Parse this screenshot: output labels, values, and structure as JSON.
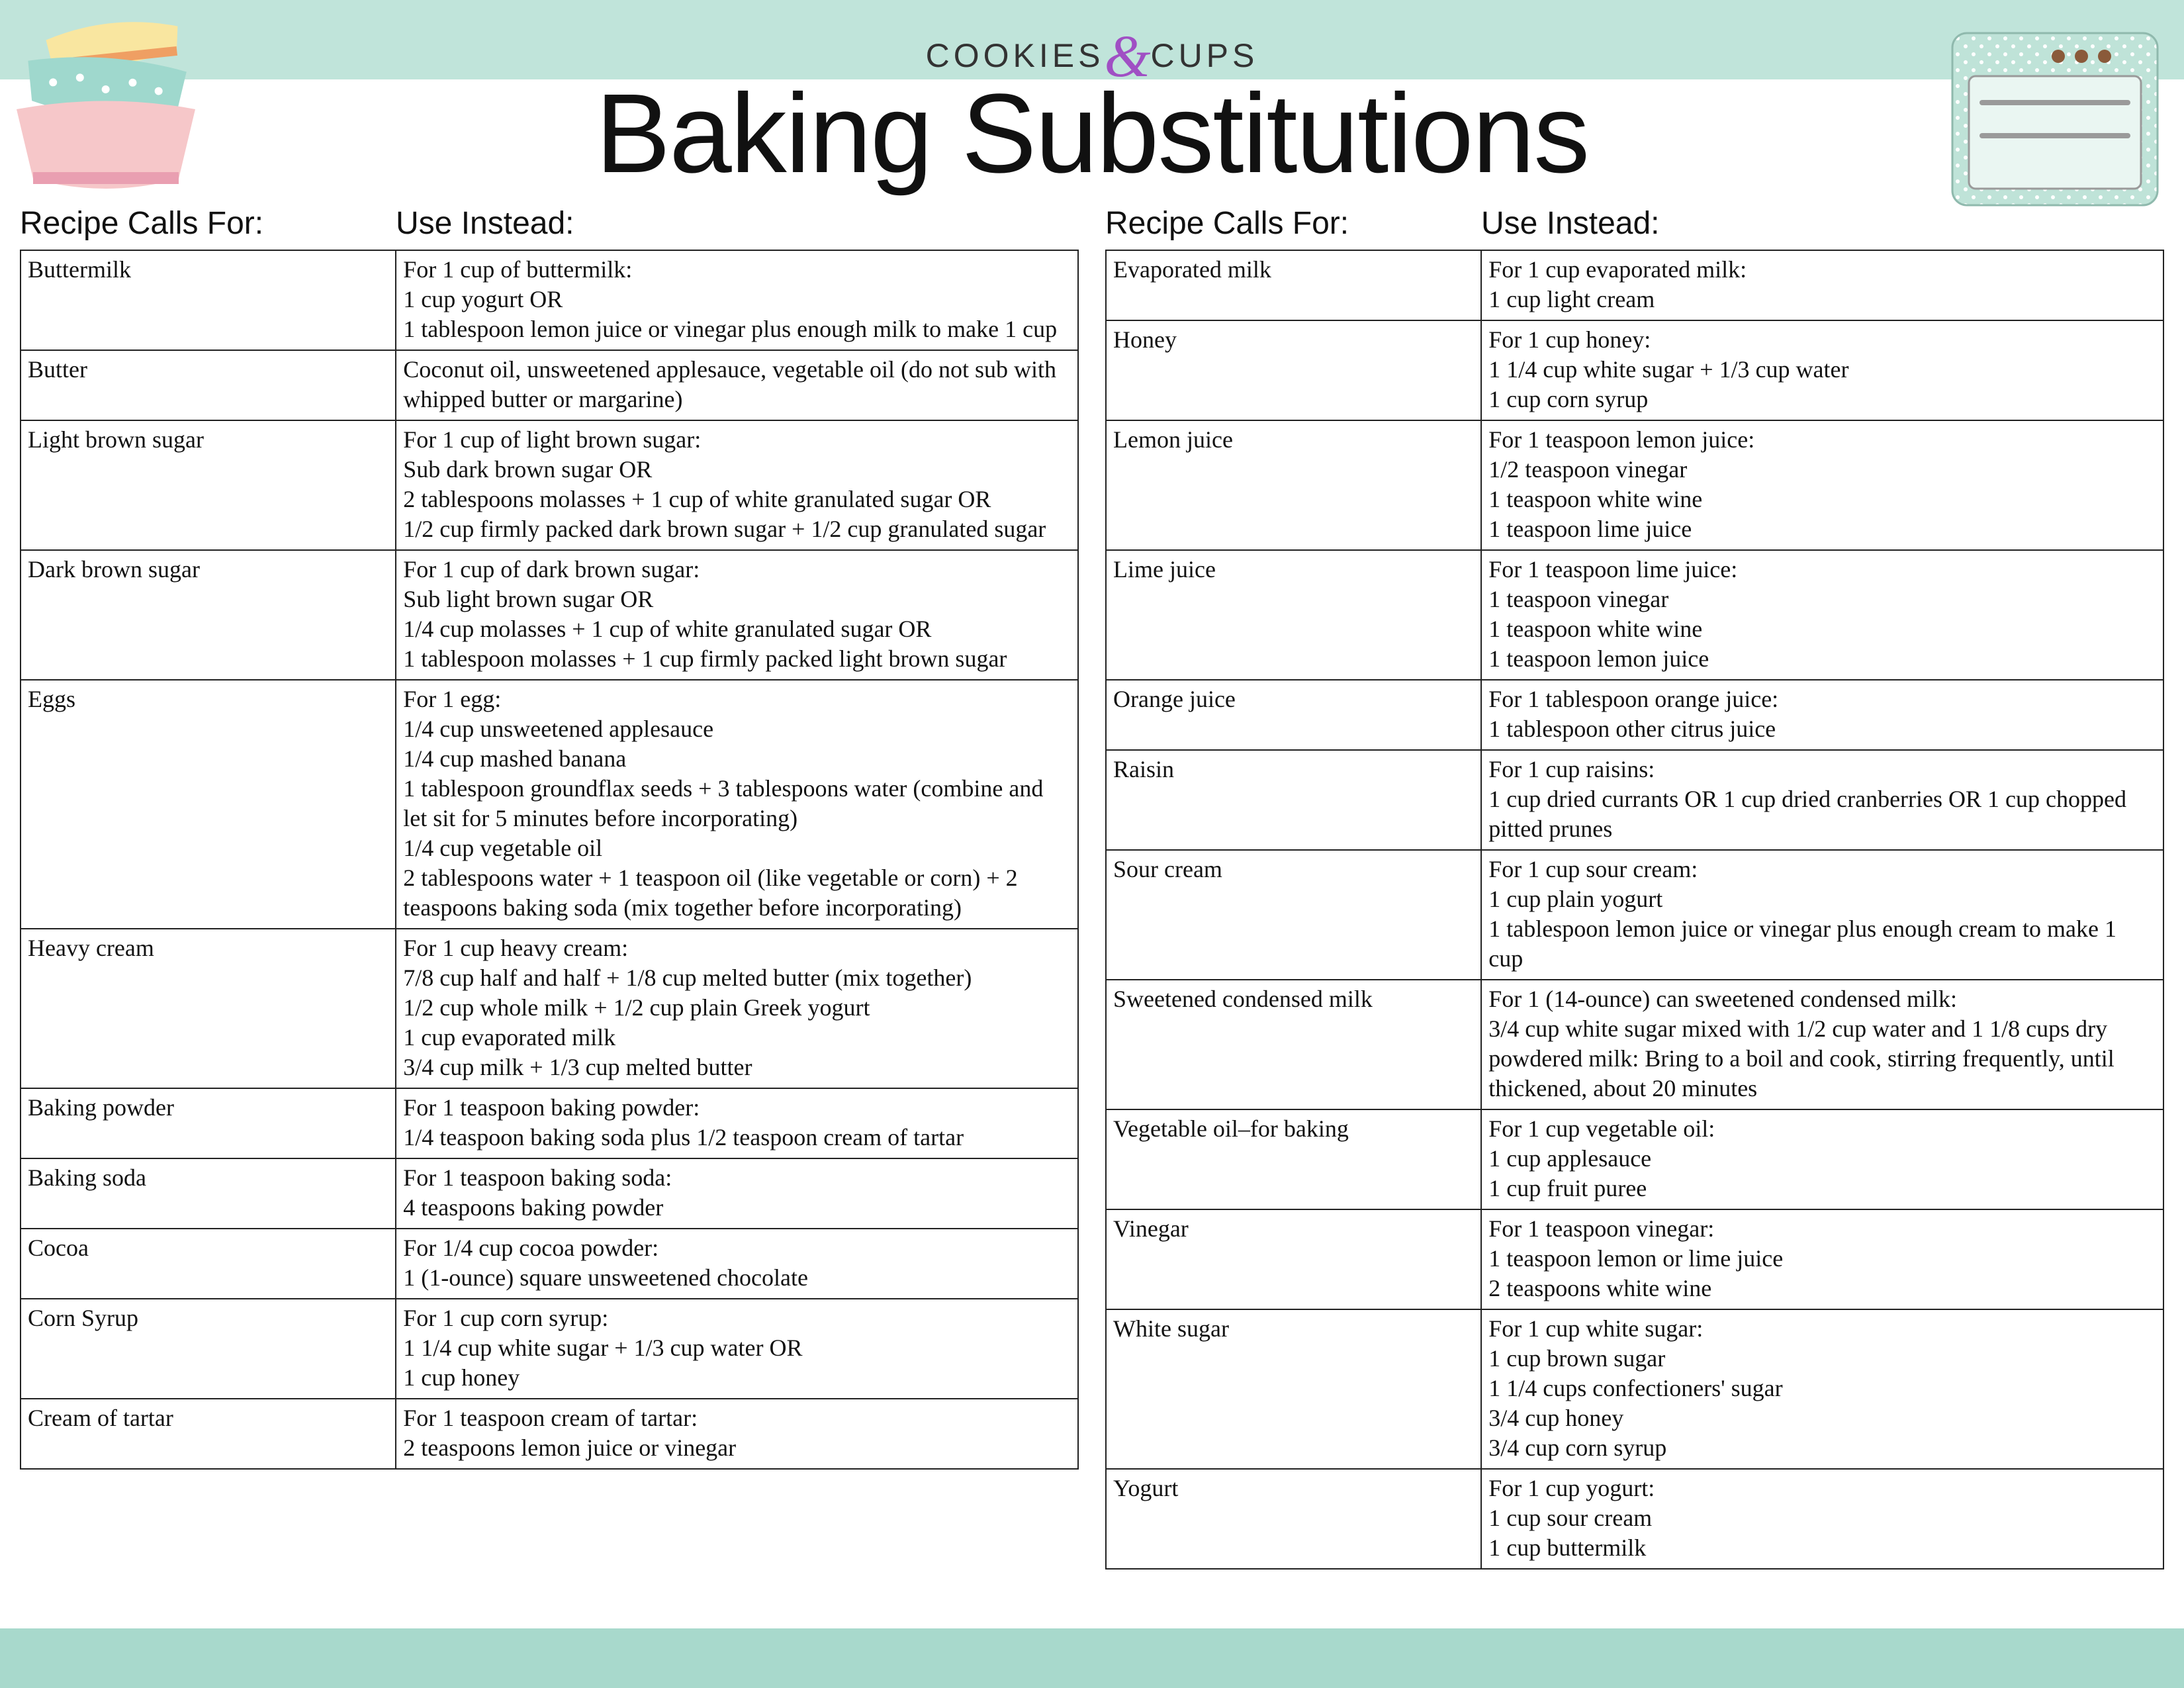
{
  "brand_left": "COOKIES",
  "brand_amp": "&",
  "brand_right": "CUPS",
  "title": "Baking Substitutions",
  "header_calls": "Recipe Calls For:",
  "header_use": "Use Instead:",
  "colors": {
    "band_top": "#c0e4da",
    "band_bottom": "#a8d9cc",
    "border": "#222222",
    "text": "#111111",
    "amp": "#a04fc4",
    "bowl_pink": "#f6c7c9",
    "bowl_teal": "#9fd8cd",
    "bowl_yellow": "#f9e6a0",
    "bowl_dot": "#ffffff",
    "oven_body": "#bfe3d8",
    "oven_dot": "#ffffff",
    "oven_window": "#eaf6f2",
    "oven_line": "#9a9a9a",
    "oven_knob": "#8a5a3a"
  },
  "left_rows": [
    {
      "ingredient": "Buttermilk",
      "subs": [
        "For 1 cup of buttermilk:",
        "1 cup yogurt OR",
        "1 tablespoon lemon juice or vinegar plus enough milk to make 1 cup"
      ]
    },
    {
      "ingredient": "Butter",
      "subs": [
        "Coconut oil, unsweetened applesauce, vegetable oil (do not sub with whipped butter or margarine)"
      ]
    },
    {
      "ingredient": "Light brown sugar",
      "subs": [
        "For 1 cup of light brown sugar:",
        "Sub dark brown sugar OR",
        "2 tablespoons molasses + 1 cup of white granulated sugar OR",
        "1/2 cup firmly packed dark brown sugar + 1/2 cup granulated sugar"
      ]
    },
    {
      "ingredient": "Dark brown sugar",
      "subs": [
        "For 1 cup of dark brown sugar:",
        "Sub light brown sugar OR",
        "1/4 cup molasses + 1 cup of white granulated sugar OR",
        "1 tablespoon molasses + 1 cup firmly packed light brown sugar"
      ]
    },
    {
      "ingredient": "Eggs",
      "subs": [
        "For 1 egg:",
        "1/4 cup unsweetened applesauce",
        "1/4 cup mashed banana",
        "1 tablespoon groundflax seeds + 3 tablespoons water (combine and let sit for 5 minutes before incorporating)",
        "1/4 cup vegetable oil",
        "2 tablespoons water + 1 teaspoon oil (like vegetable or corn) + 2 teaspoons baking soda (mix together before incorporating)"
      ]
    },
    {
      "ingredient": "Heavy cream",
      "subs": [
        "For 1 cup heavy cream:",
        "7/8 cup half and half + 1/8 cup melted butter (mix together)",
        "1/2 cup whole milk + 1/2 cup plain Greek yogurt",
        "1 cup evaporated milk",
        "3/4 cup milk + 1/3 cup melted butter"
      ]
    },
    {
      "ingredient": "Baking powder",
      "subs": [
        "For 1 teaspoon baking powder:",
        "1/4 teaspoon baking soda plus 1/2 teaspoon cream of tartar"
      ]
    },
    {
      "ingredient": "Baking soda",
      "subs": [
        "For 1 teaspoon baking soda:",
        "4 teaspoons baking powder"
      ]
    },
    {
      "ingredient": "Cocoa",
      "subs": [
        "For 1/4 cup cocoa powder:",
        "1 (1-ounce) square unsweetened chocolate"
      ]
    },
    {
      "ingredient": "Corn Syrup",
      "subs": [
        "For 1 cup corn syrup:",
        "1 1/4 cup white sugar + 1/3 cup water OR",
        "1 cup honey"
      ]
    },
    {
      "ingredient": "Cream of tartar",
      "subs": [
        "For 1 teaspoon cream of tartar:",
        "2 teaspoons lemon juice or vinegar"
      ]
    }
  ],
  "right_rows": [
    {
      "ingredient": "Evaporated milk",
      "subs": [
        "For 1 cup evaporated milk:",
        "1 cup light cream"
      ]
    },
    {
      "ingredient": "Honey",
      "subs": [
        "For 1 cup honey:",
        "1 1/4 cup white sugar + 1/3 cup water",
        "1 cup corn syrup"
      ]
    },
    {
      "ingredient": "Lemon juice",
      "subs": [
        "For 1 teaspoon lemon juice:",
        "1/2 teaspoon vinegar",
        "1 teaspoon white wine",
        "1 teaspoon lime juice"
      ]
    },
    {
      "ingredient": "Lime juice",
      "subs": [
        "For 1 teaspoon lime juice:",
        "1 teaspoon vinegar",
        "1 teaspoon white wine",
        "1 teaspoon lemon juice"
      ]
    },
    {
      "ingredient": "Orange juice",
      "subs": [
        "For 1 tablespoon orange juice:",
        "1 tablespoon other citrus juice"
      ]
    },
    {
      "ingredient": "Raisin",
      "subs": [
        "For 1 cup raisins:",
        "1 cup dried currants OR 1 cup dried cranberries OR 1 cup chopped pitted prunes"
      ]
    },
    {
      "ingredient": "Sour cream",
      "subs": [
        "For 1 cup sour cream:",
        "1 cup plain yogurt",
        "1 tablespoon lemon juice or vinegar plus enough cream to make 1 cup"
      ]
    },
    {
      "ingredient": "Sweetened condensed milk",
      "subs": [
        "For 1 (14-ounce) can sweetened condensed milk:",
        "3/4 cup white sugar mixed with 1/2 cup water and 1 1/8 cups dry powdered milk: Bring to a boil and cook, stirring frequently, until thickened, about 20 minutes"
      ]
    },
    {
      "ingredient": "Vegetable oil–for baking",
      "subs": [
        "For 1 cup vegetable oil:",
        "1 cup applesauce",
        "1 cup fruit puree"
      ]
    },
    {
      "ingredient": "Vinegar",
      "subs": [
        "For 1 teaspoon vinegar:",
        "1 teaspoon lemon or lime juice",
        "2 teaspoons white wine"
      ]
    },
    {
      "ingredient": "White sugar",
      "subs": [
        "For 1 cup white sugar:",
        "1 cup brown sugar",
        "1 1/4 cups confectioners' sugar",
        "3/4 cup honey",
        "3/4 cup corn syrup"
      ]
    },
    {
      "ingredient": "Yogurt",
      "subs": [
        "For 1 cup yogurt:",
        "1 cup sour cream",
        "1 cup buttermilk"
      ]
    }
  ]
}
